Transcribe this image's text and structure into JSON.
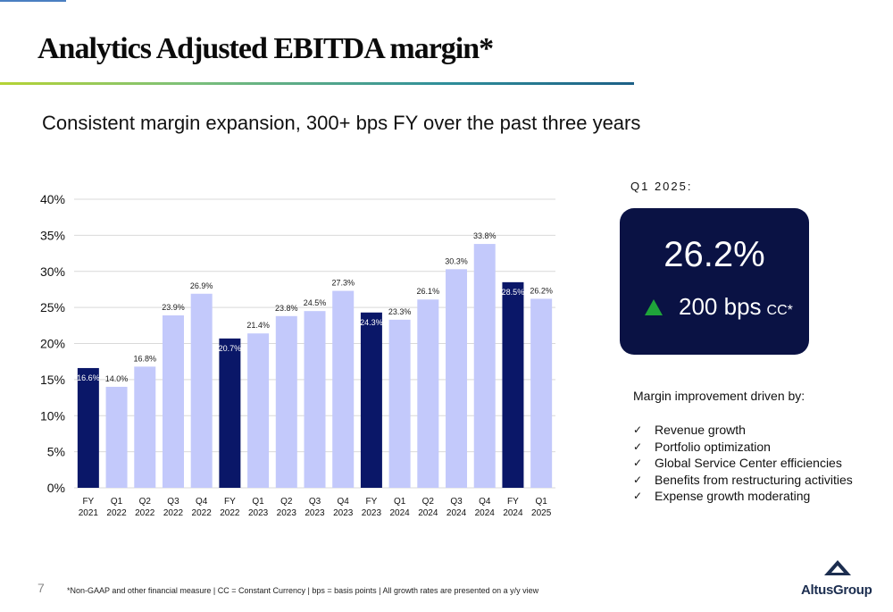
{
  "page": {
    "title": "Analytics Adjusted EBITDA margin*",
    "subtitle": "Consistent margin expansion, 300+ bps FY over the past three years",
    "page_number": "7",
    "footnote": "*Non-GAAP and other financial measure | CC = Constant Currency  |  bps =  basis points  | All growth rates are presented on a y/y view"
  },
  "kpi": {
    "period_label": "Q1 2025:",
    "value": "26.2%",
    "change": "200 bps",
    "change_unit": "CC*",
    "change_icon": "up-triangle-icon",
    "box_color": "#0a1244",
    "change_color": "#1fa53a"
  },
  "drivers": {
    "title": "Margin improvement driven by:",
    "check_glyph": "✓",
    "items": [
      "Revenue growth",
      "Portfolio optimization",
      "Global Service Center efficiencies",
      "Benefits from restructuring activities",
      "Expense growth moderating"
    ]
  },
  "logo": {
    "text": "AltusGroup",
    "icon": "altus-mountain-icon"
  },
  "colors": {
    "fy_bar": "#0a1768",
    "quarter_bar": "#c3c9fb",
    "grid": "#d9d9d9"
  },
  "chart_data": {
    "type": "bar",
    "title": "",
    "xlabel": "",
    "ylabel": "",
    "ylim": [
      0,
      40
    ],
    "yticks": [
      "0%",
      "5%",
      "10%",
      "15%",
      "20%",
      "25%",
      "30%",
      "35%",
      "40%"
    ],
    "grid": true,
    "legend": "none",
    "categories": [
      [
        "FY",
        "2021"
      ],
      [
        "Q1",
        "2022"
      ],
      [
        "Q2",
        "2022"
      ],
      [
        "Q3",
        "2022"
      ],
      [
        "Q4",
        "2022"
      ],
      [
        "FY",
        "2022"
      ],
      [
        "Q1",
        "2023"
      ],
      [
        "Q2",
        "2023"
      ],
      [
        "Q3",
        "2023"
      ],
      [
        "Q4",
        "2023"
      ],
      [
        "FY",
        "2023"
      ],
      [
        "Q1",
        "2024"
      ],
      [
        "Q2",
        "2024"
      ],
      [
        "Q3",
        "2024"
      ],
      [
        "Q4",
        "2024"
      ],
      [
        "FY",
        "2024"
      ],
      [
        "Q1",
        "2025"
      ]
    ],
    "values": [
      16.6,
      14.0,
      16.8,
      23.9,
      26.9,
      20.7,
      21.4,
      23.8,
      24.5,
      27.3,
      24.3,
      23.3,
      26.1,
      30.3,
      33.8,
      28.5,
      26.2
    ],
    "labels": [
      "16.6%",
      "14.0%",
      "16.8%",
      "23.9%",
      "26.9%",
      "20.7%",
      "21.4%",
      "23.8%",
      "24.5%",
      "27.3%",
      "24.3%",
      "23.3%",
      "26.1%",
      "30.3%",
      "33.8%",
      "28.5%",
      "26.2%"
    ],
    "annual": [
      true,
      false,
      false,
      false,
      false,
      true,
      false,
      false,
      false,
      false,
      true,
      false,
      false,
      false,
      false,
      true,
      false
    ]
  }
}
